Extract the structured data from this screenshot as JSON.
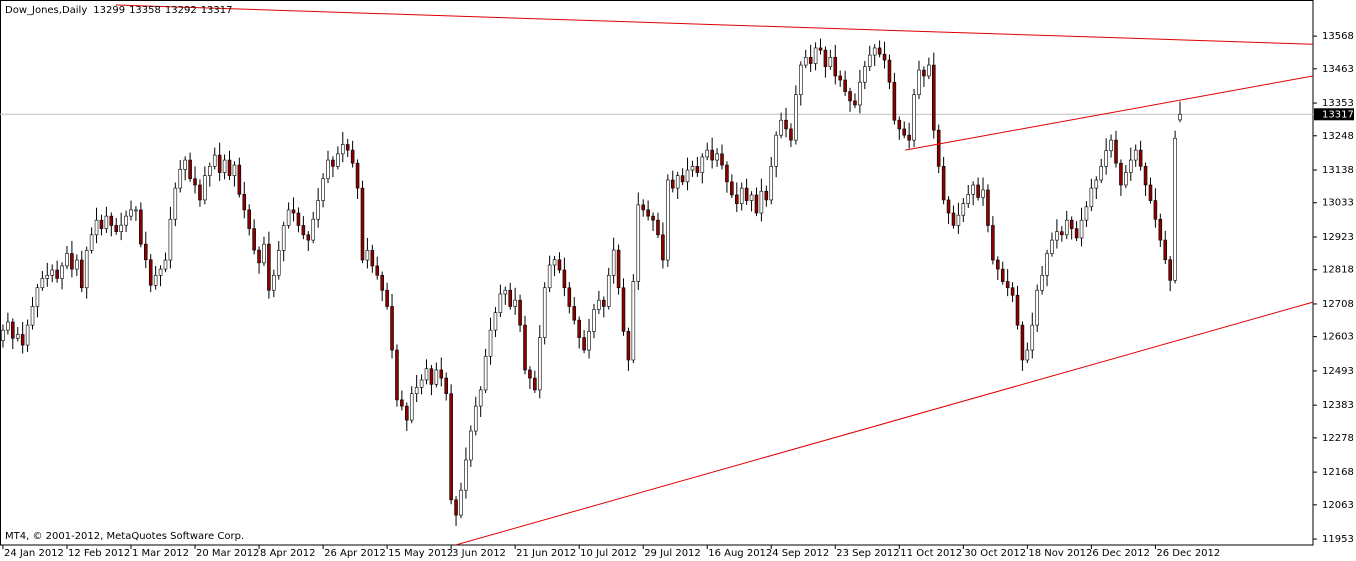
{
  "chart_data": {
    "type": "candlestick",
    "title": "Dow_Jones,Daily",
    "footer": "MT4, © 2001-2012, MetaQuotes Software Corp.",
    "up_color": "#ffffff",
    "down_color": "#8b0000",
    "wick_color": "#000000",
    "trendline_color": "#e00000",
    "price_line": true,
    "ylim": [
      11934,
      13684
    ],
    "yticks": [
      11953,
      12063,
      12168,
      12278,
      12383,
      12493,
      12603,
      12708,
      12818,
      12923,
      13033,
      13138,
      13248,
      13353,
      13463,
      13568
    ],
    "xlim": [
      -0.6,
      266
    ],
    "xticks": [
      {
        "value": 0,
        "label": "24 Jan 2012"
      },
      {
        "value": 13,
        "label": "12 Feb 2012"
      },
      {
        "value": 26,
        "label": "1 Mar 2012"
      },
      {
        "value": 39,
        "label": "20 Mar 2012"
      },
      {
        "value": 52,
        "label": "8 Apr 2012"
      },
      {
        "value": 65,
        "label": "26 Apr 2012"
      },
      {
        "value": 78,
        "label": "15 May 2012"
      },
      {
        "value": 91,
        "label": "3 Jun 2012"
      },
      {
        "value": 104,
        "label": "21 Jun 2012"
      },
      {
        "value": 117,
        "label": "10 Jul 2012"
      },
      {
        "value": 130,
        "label": "29 Jul 2012"
      },
      {
        "value": 143,
        "label": "16 Aug 2012"
      },
      {
        "value": 156,
        "label": "4 Sep 2012"
      },
      {
        "value": 169,
        "label": "23 Sep 2012"
      },
      {
        "value": 182,
        "label": "11 Oct 2012"
      },
      {
        "value": 195,
        "label": "30 Oct 2012"
      },
      {
        "value": 208,
        "label": "18 Nov 2012"
      },
      {
        "value": 221,
        "label": "6 Dec 2012"
      },
      {
        "value": 234,
        "label": "26 Dec 2012"
      }
    ],
    "trendlines": [
      {
        "x": [
          22.9,
          266
        ],
        "y": [
          13668,
          13542
        ]
      },
      {
        "x": [
          183.2,
          266
        ],
        "y": [
          13202,
          13440
        ]
      },
      {
        "x": [
          91.9,
          266
        ],
        "y": [
          11934,
          12714
        ]
      }
    ],
    "open": [
      12590,
      12624,
      12650,
      12598,
      12610,
      12576,
      12640,
      12700,
      12760,
      12790,
      12800,
      12817,
      12790,
      12830,
      12870,
      12820,
      12849,
      12760,
      12880,
      12930,
      12977,
      12950,
      12990,
      12960,
      12940,
      12961,
      12990,
      13010,
      13010,
      12900,
      12850,
      12768,
      12800,
      12820,
      12849,
      12980,
      13080,
      13140,
      13170,
      13110,
      13090,
      13042,
      13120,
      13150,
      13186,
      13130,
      13170,
      13120,
      13154,
      13060,
      13010,
      12950,
      12881,
      12840,
      12900,
      12752,
      12800,
      12880,
      12960,
      13010,
      13000,
      12960,
      12930,
      12913,
      12980,
      13040,
      13110,
      13170,
      13150,
      13190,
      13220,
      13202,
      13160,
      13080,
      12849,
      12880,
      12830,
      12800,
      12752,
      12700,
      12560,
      12400,
      12380,
      12335,
      12420,
      12440,
      12464,
      12500,
      12450,
      12496,
      12470,
      12420,
      12079,
      12030,
      12110,
      12207,
      12300,
      12380,
      12432,
      12540,
      12624,
      12680,
      12740,
      12752,
      12700,
      12720,
      12640,
      12496,
      12470,
      12432,
      12600,
      12760,
      12833,
      12850,
      12817,
      12760,
      12700,
      12656,
      12600,
      12560,
      12620,
      12690,
      12720,
      12700,
      12800,
      12881,
      12760,
      12620,
      12528,
      12780,
      13026,
      13010,
      12990,
      12977,
      12930,
      12849,
      13106,
      13080,
      13120,
      13100,
      13138,
      13150,
      13130,
      13180,
      13202,
      13170,
      13190,
      13154,
      13100,
      13058,
      13030,
      13080,
      13040,
      13058,
      13000,
      13070,
      13042,
      13150,
      13250,
      13298,
      13270,
      13234,
      13380,
      13475,
      13500,
      13480,
      13530,
      13523,
      13470,
      13500,
      13440,
      13427,
      13390,
      13360,
      13347,
      13420,
      13470,
      13507,
      13530,
      13510,
      13491,
      13420,
      13298,
      13270,
      13250,
      13234,
      13380,
      13459,
      13440,
      13475,
      13266,
      13150,
      13042,
      13000,
      12960,
      12993,
      13030,
      13060,
      13090,
      13050,
      13074,
      12960,
      12849,
      12820,
      12780,
      12760,
      12736,
      12640,
      12528,
      12560,
      12640,
      12752,
      12800,
      12870,
      12913,
      12940,
      12930,
      12977,
      12950,
      12920,
      12977,
      13020,
      13080,
      13106,
      13150,
      13200,
      13234,
      13160,
      13090,
      13130,
      13170,
      13202,
      13150,
      13090,
      13040,
      12980,
      12913,
      12850,
      12784,
      13299
    ],
    "high": [
      12642,
      12680,
      12662,
      12634,
      12650,
      12658,
      12730,
      12772,
      12814,
      12840,
      12835,
      12847,
      12842,
      12894,
      12910,
      12867,
      12879,
      12892,
      12954,
      13017,
      12995,
      13020,
      13002,
      12984,
      13001,
      13008,
      13040,
      13022,
      13034,
      12940,
      12868,
      12830,
      12832,
      12873,
      13020,
      13098,
      13170,
      13182,
      13194,
      13150,
      13108,
      13150,
      13162,
      13210,
      13226,
      13188,
      13200,
      13166,
      13178,
      13100,
      13028,
      12980,
      12893,
      12924,
      12940,
      12818,
      12910,
      12972,
      13034,
      13050,
      13018,
      12990,
      12942,
      13004,
      13080,
      13128,
      13200,
      13182,
      13214,
      13260,
      13238,
      13232,
      13172,
      13104,
      12920,
      12898,
      12860,
      12812,
      12776,
      12740,
      12578,
      12430,
      12392,
      12444,
      12480,
      12482,
      12530,
      12512,
      12520,
      12536,
      12488,
      12450,
      12091,
      12134,
      12247,
      12318,
      12410,
      12444,
      12564,
      12664,
      12698,
      12770,
      12764,
      12776,
      12760,
      12738,
      12670,
      12508,
      12494,
      12640,
      12778,
      12863,
      12862,
      12874,
      12857,
      12778,
      12730,
      12668,
      12624,
      12660,
      12708,
      12750,
      12732,
      12824,
      12921,
      12899,
      12790,
      12632,
      12804,
      13066,
      13044,
      13040,
      13002,
      13001,
      12970,
      13124,
      13136,
      13132,
      13144,
      13178,
      13168,
      13180,
      13192,
      13226,
      13242,
      13208,
      13220,
      13166,
      13124,
      13098,
      13098,
      13110,
      13070,
      13082,
      13110,
      13088,
      13180,
      13262,
      13322,
      13338,
      13288,
      13410,
      13487,
      13524,
      13540,
      13548,
      13560,
      13535,
      13524,
      13540,
      13458,
      13457,
      13402,
      13384,
      13460,
      13488,
      13537,
      13542,
      13554,
      13550,
      13509,
      13450,
      13310,
      13294,
      13290,
      13398,
      13489,
      13471,
      13499,
      13515,
      13284,
      13180,
      13054,
      13024,
      13033,
      13048,
      13090,
      13102,
      13114,
      13114,
      13092,
      12990,
      12861,
      12844,
      12820,
      12778,
      12766,
      12652,
      12584,
      12680,
      12770,
      12830,
      12882,
      12937,
      12980,
      12958,
      13007,
      12989,
      12974,
      13017,
      13038,
      13110,
      13118,
      13174,
      13240,
      13252,
      13264,
      13172,
      13154,
      13210,
      13220,
      13232,
      13162,
      13114,
      13080,
      12998,
      12943,
      12862,
      13264,
      13358
    ],
    "low": [
      12568,
      12610,
      12563,
      12588,
      12549,
      12554,
      12626,
      12665,
      12750,
      12763,
      12778,
      12776,
      12755,
      12820,
      12793,
      12798,
      12746,
      12725,
      12870,
      12903,
      12928,
      12936,
      12925,
      12930,
      12913,
      12939,
      12976,
      12975,
      12890,
      12823,
      12746,
      12754,
      12765,
      12810,
      12822,
      12958,
      13066,
      13105,
      13100,
      13063,
      13020,
      13028,
      13085,
      13140,
      13103,
      13108,
      13106,
      13085,
      13050,
      12983,
      12928,
      12867,
      12805,
      12830,
      12725,
      12730,
      12786,
      12845,
      12950,
      12973,
      12938,
      12916,
      12878,
      12903,
      12953,
      13018,
      13096,
      13115,
      13140,
      13163,
      13180,
      13146,
      13045,
      12839,
      12822,
      12808,
      12786,
      12717,
      12690,
      12533,
      12378,
      12366,
      12300,
      12325,
      12393,
      12418,
      12450,
      12415,
      12440,
      12443,
      12398,
      12065,
      11995,
      12020,
      12083,
      12185,
      12286,
      12345,
      12422,
      12513,
      12602,
      12666,
      12705,
      12690,
      12673,
      12618,
      12482,
      12435,
      12422,
      12405,
      12578,
      12746,
      12798,
      12807,
      12733,
      12678,
      12642,
      12565,
      12550,
      12533,
      12598,
      12676,
      12665,
      12690,
      12773,
      12738,
      12606,
      12493,
      12518,
      12753,
      12988,
      12976,
      12942,
      12920,
      12822,
      12827,
      13066,
      13045,
      13090,
      13073,
      13116,
      13116,
      13095,
      13170,
      13143,
      13148,
      13140,
      13065,
      13048,
      13003,
      13008,
      13026,
      13005,
      12990,
      12973,
      13020,
      13028,
      13115,
      13240,
      13243,
      13212,
      13220,
      13345,
      13465,
      13453,
      13458,
      13509,
      13435,
      13460,
      13413,
      13405,
      13376,
      13325,
      13337,
      13320,
      13398,
      13456,
      13472,
      13500,
      13464,
      13398,
      13284,
      13235,
      13240,
      13207,
      13212,
      13366,
      13405,
      13430,
      13239,
      13128,
      13028,
      12965,
      12950,
      12933,
      12971,
      13016,
      13025,
      13040,
      13023,
      12938,
      12835,
      12785,
      12770,
      12733,
      12714,
      12626,
      12493,
      12518,
      12533,
      12618,
      12738,
      12765,
      12860,
      12886,
      12908,
      12916,
      12915,
      12910,
      12893,
      12955,
      13006,
      13045,
      13096,
      13123,
      13178,
      13146,
      13055,
      13080,
      13103,
      13148,
      13136,
      13055,
      13030,
      12953,
      12891,
      12836,
      12749,
      12774,
      13292
    ],
    "close": [
      12624,
      12650,
      12598,
      12610,
      12576,
      12640,
      12700,
      12760,
      12790,
      12800,
      12817,
      12790,
      12830,
      12870,
      12820,
      12849,
      12760,
      12880,
      12930,
      12977,
      12950,
      12990,
      12960,
      12940,
      12961,
      12990,
      13010,
      13010,
      12900,
      12850,
      12768,
      12800,
      12820,
      12849,
      12980,
      13080,
      13140,
      13170,
      13110,
      13090,
      13042,
      13120,
      13150,
      13186,
      13130,
      13170,
      13120,
      13154,
      13060,
      13010,
      12950,
      12881,
      12840,
      12900,
      12752,
      12800,
      12880,
      12960,
      13010,
      13000,
      12960,
      12930,
      12913,
      12980,
      13040,
      13110,
      13170,
      13150,
      13190,
      13220,
      13202,
      13160,
      13080,
      12849,
      12880,
      12830,
      12800,
      12752,
      12700,
      12560,
      12400,
      12380,
      12335,
      12420,
      12440,
      12464,
      12500,
      12450,
      12496,
      12470,
      12420,
      12079,
      12030,
      12110,
      12207,
      12300,
      12380,
      12432,
      12540,
      12624,
      12680,
      12740,
      12752,
      12700,
      12720,
      12640,
      12496,
      12470,
      12432,
      12600,
      12760,
      12833,
      12850,
      12817,
      12760,
      12700,
      12656,
      12600,
      12560,
      12620,
      12690,
      12720,
      12700,
      12800,
      12881,
      12760,
      12620,
      12528,
      12780,
      13026,
      13010,
      12990,
      12977,
      12930,
      12849,
      13106,
      13080,
      13120,
      13100,
      13138,
      13150,
      13130,
      13180,
      13202,
      13170,
      13190,
      13154,
      13100,
      13058,
      13030,
      13080,
      13040,
      13058,
      13000,
      13070,
      13042,
      13150,
      13250,
      13298,
      13270,
      13234,
      13380,
      13475,
      13500,
      13480,
      13530,
      13523,
      13470,
      13500,
      13440,
      13427,
      13390,
      13360,
      13347,
      13420,
      13470,
      13507,
      13530,
      13510,
      13491,
      13420,
      13298,
      13270,
      13250,
      13234,
      13380,
      13459,
      13440,
      13475,
      13266,
      13150,
      13042,
      13000,
      12960,
      12993,
      13030,
      13060,
      13090,
      13050,
      13074,
      12960,
      12849,
      12820,
      12780,
      12760,
      12736,
      12640,
      12528,
      12560,
      12640,
      12752,
      12800,
      12870,
      12913,
      12940,
      12930,
      12977,
      12950,
      12920,
      12977,
      13020,
      13080,
      13106,
      13150,
      13200,
      13234,
      13160,
      13090,
      13130,
      13170,
      13202,
      13150,
      13090,
      13040,
      12980,
      12913,
      12850,
      12784,
      13240,
      13317
    ]
  }
}
